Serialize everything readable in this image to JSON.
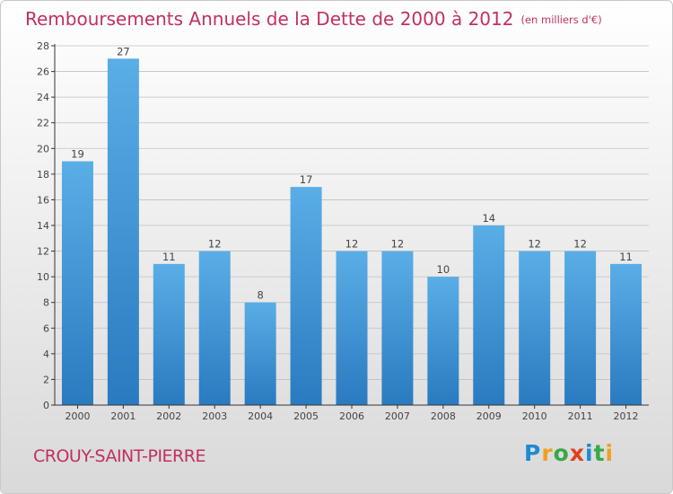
{
  "title": "Remboursements Annuels de la Dette de 2000 à 2012",
  "subtitle": "(en milliers d'€)",
  "commune": "CROUY-SAINT-PIERRE",
  "brand": {
    "letters": [
      "P",
      "r",
      "o",
      "x",
      "i",
      "t",
      "i"
    ],
    "colors": [
      "#1f8ad0",
      "#f0a020",
      "#39a845",
      "#e04020",
      "#1f8ad0",
      "#39a845",
      "#f0a020"
    ]
  },
  "colors": {
    "bar_top": "#5aaee6",
    "bar_bottom": "#2a7ac0",
    "axis": "#333333",
    "grid": "#c0c0c0",
    "text": "#444444",
    "title": "#c03060"
  },
  "chart_data": {
    "type": "bar",
    "categories": [
      "2000",
      "2001",
      "2002",
      "2003",
      "2004",
      "2005",
      "2006",
      "2007",
      "2008",
      "2009",
      "2010",
      "2011",
      "2012"
    ],
    "values": [
      19,
      27,
      11,
      12,
      8,
      17,
      12,
      12,
      10,
      14,
      12,
      12,
      11
    ],
    "ylim": [
      0,
      28
    ],
    "yticks": [
      0,
      2,
      4,
      6,
      8,
      10,
      12,
      14,
      16,
      18,
      20,
      22,
      24,
      26,
      28
    ],
    "grid": true,
    "data_labels": true
  }
}
